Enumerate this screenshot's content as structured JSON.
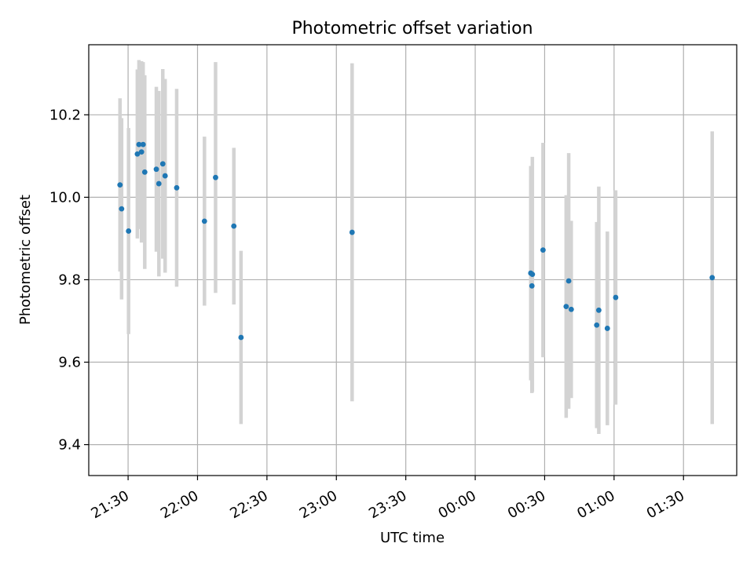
{
  "chart_data": {
    "type": "scatter",
    "title": "Photometric offset variation",
    "xlabel": "UTC time",
    "ylabel": "Photometric offset",
    "xlim": [
      "21:13",
      "01:53"
    ],
    "ylim": [
      9.325,
      10.37
    ],
    "x_ticks": [
      "21:30",
      "22:00",
      "22:30",
      "23:00",
      "23:30",
      "00:00",
      "00:30",
      "01:00",
      "01:30"
    ],
    "y_ticks": [
      "9.4",
      "9.6",
      "9.8",
      "10.0",
      "10.2"
    ],
    "grid": true,
    "colors": {
      "points": "#1f77b4",
      "error_bars": "#d3d3d3",
      "grid": "#b0b0b0"
    },
    "series": [
      {
        "points": [
          {
            "x": "21:26.5",
            "y": 10.03,
            "yerr": 0.21
          },
          {
            "x": "21:27.2",
            "y": 9.972,
            "yerr": 0.22
          },
          {
            "x": "21:30.2",
            "y": 9.918,
            "yerr": 0.25
          },
          {
            "x": "21:34.0",
            "y": 10.105,
            "yerr": 0.205
          },
          {
            "x": "21:34.7",
            "y": 10.128,
            "yerr": 0.205
          },
          {
            "x": "21:35.8",
            "y": 10.11,
            "yerr": 0.22
          },
          {
            "x": "21:36.5",
            "y": 10.128,
            "yerr": 0.2
          },
          {
            "x": "21:37.2",
            "y": 10.061,
            "yerr": 0.235
          },
          {
            "x": "21:42.2",
            "y": 10.068,
            "yerr": 0.2
          },
          {
            "x": "21:43.3",
            "y": 10.033,
            "yerr": 0.225
          },
          {
            "x": "21:45.0",
            "y": 10.081,
            "yerr": 0.23
          },
          {
            "x": "21:46.0",
            "y": 10.052,
            "yerr": 0.235
          },
          {
            "x": "21:51.0",
            "y": 10.023,
            "yerr": 0.24
          },
          {
            "x": "22:03.0",
            "y": 9.942,
            "yerr": 0.205
          },
          {
            "x": "22:07.8",
            "y": 10.048,
            "yerr": 0.28
          },
          {
            "x": "22:15.7",
            "y": 9.93,
            "yerr": 0.19
          },
          {
            "x": "22:18.8",
            "y": 9.66,
            "yerr": 0.21
          },
          {
            "x": "23:06.8",
            "y": 9.915,
            "yerr": 0.41
          },
          {
            "x": "00:24.0",
            "y": 9.816,
            "yerr": 0.26
          },
          {
            "x": "00:24.5",
            "y": 9.785,
            "yerr": 0.26
          },
          {
            "x": "00:24.7",
            "y": 9.813,
            "yerr": 0.285
          },
          {
            "x": "00:29.3",
            "y": 9.872,
            "yerr": 0.26
          },
          {
            "x": "00:39.3",
            "y": 9.735,
            "yerr": 0.27
          },
          {
            "x": "00:40.4",
            "y": 9.797,
            "yerr": 0.31
          },
          {
            "x": "00:41.5",
            "y": 9.728,
            "yerr": 0.215
          },
          {
            "x": "00:52.5",
            "y": 9.69,
            "yerr": 0.25
          },
          {
            "x": "00:53.4",
            "y": 9.726,
            "yerr": 0.3
          },
          {
            "x": "00:57.1",
            "y": 9.682,
            "yerr": 0.235
          },
          {
            "x": "01:00.7",
            "y": 9.757,
            "yerr": 0.26
          },
          {
            "x": "01:42.4",
            "y": 9.805,
            "yerr": 0.355
          }
        ]
      }
    ]
  }
}
